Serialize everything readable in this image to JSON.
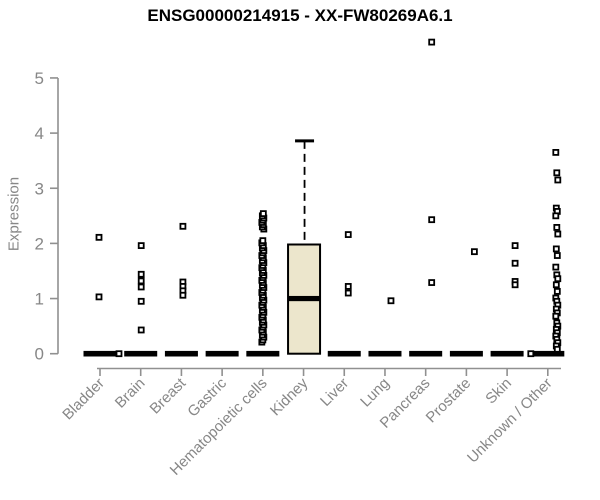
{
  "title": "ENSG00000214915 - XX-FW80269A6.1",
  "y_axis": {
    "label": "Expression",
    "ticks": [
      0,
      1,
      2,
      3,
      4,
      5
    ],
    "min": 0,
    "max": 5
  },
  "colors": {
    "box_fill": "#ECE6CC",
    "box_stroke": "#000000",
    "point_stroke": "#000000",
    "point_fill": "#ffffff",
    "zero_bar": "#000000",
    "axis": "#909090",
    "tick_label": "#878787",
    "title": "#000000"
  },
  "chart_data": {
    "type": "boxplot",
    "title": "ENSG00000214915 - XX-FW80269A6.1",
    "xlabel": "",
    "ylabel": "Expression",
    "ylim": [
      0,
      5
    ],
    "grid": false,
    "categories": [
      "Bladder",
      "Brain",
      "Breast",
      "Gastric",
      "Hematopoietic cells",
      "Kidney",
      "Liver",
      "Lung",
      "Pancreas",
      "Prostate",
      "Skin",
      "Unknown / Other"
    ],
    "series": [
      {
        "category": "Bladder",
        "zero_bar": true,
        "points": [
          2.11,
          1.03,
          0
        ]
      },
      {
        "category": "Brain",
        "zero_bar": true,
        "points": [
          1.96,
          1.44,
          1.32,
          1.21,
          0.95,
          0.43
        ]
      },
      {
        "category": "Breast",
        "zero_bar": true,
        "points": [
          2.31,
          1.3,
          1.22,
          1.14,
          1.06
        ]
      },
      {
        "category": "Gastric",
        "zero_bar": true,
        "points": []
      },
      {
        "category": "Hematopoietic cells",
        "zero_bar": true,
        "points": [
          0.21,
          0.25,
          0.3,
          0.34,
          0.39,
          0.43,
          0.48,
          0.52,
          0.57,
          0.61,
          0.66,
          0.7,
          0.75,
          0.79,
          0.84,
          0.88,
          0.93,
          0.97,
          1.02,
          1.06,
          1.11,
          1.15,
          1.2,
          1.24,
          1.29,
          1.33,
          1.38,
          1.42,
          1.47,
          1.51,
          1.56,
          1.6,
          1.65,
          1.69,
          1.74,
          1.78,
          1.83,
          1.87,
          1.92,
          1.96,
          2.01,
          2.05,
          2.26,
          2.3,
          2.34,
          2.38,
          2.42,
          2.46,
          2.5,
          2.54
        ]
      },
      {
        "category": "Kidney",
        "zero_bar": false,
        "points": [],
        "box": {
          "whisker_low": 0,
          "q1": 0,
          "median": 1.0,
          "q3": 1.98,
          "whisker_high": 3.86
        }
      },
      {
        "category": "Liver",
        "zero_bar": true,
        "points": [
          2.16,
          1.22,
          1.1
        ]
      },
      {
        "category": "Lung",
        "zero_bar": true,
        "points": [
          0.96
        ]
      },
      {
        "category": "Pancreas",
        "zero_bar": true,
        "points": [
          5.65,
          2.43,
          1.29
        ]
      },
      {
        "category": "Prostate",
        "zero_bar": true,
        "points": [
          1.85
        ]
      },
      {
        "category": "Skin",
        "zero_bar": true,
        "points": [
          1.96,
          1.64,
          1.31,
          1.25
        ]
      },
      {
        "category": "Unknown / Other",
        "zero_bar": true,
        "points": [
          3.65,
          3.28,
          3.15,
          2.64,
          2.58,
          2.5,
          2.29,
          2.17,
          1.9,
          1.78,
          1.57,
          1.43,
          1.36,
          1.25,
          1.13,
          1.01,
          0.95,
          0.88,
          0.81,
          0.74,
          0.68,
          0.56,
          0.5,
          0.44,
          0.38,
          0.32,
          0.26,
          0.2,
          0.14,
          0.08,
          0
        ]
      }
    ]
  }
}
